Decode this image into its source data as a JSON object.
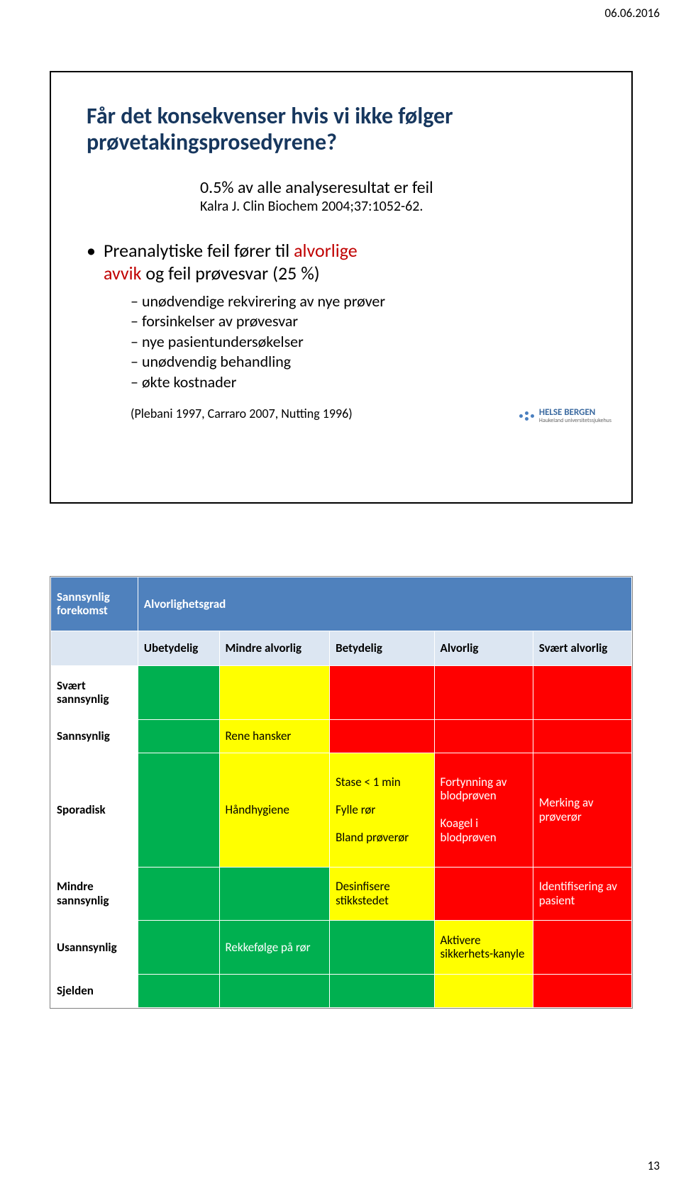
{
  "meta": {
    "date": "06.06.2016",
    "page_number": "13"
  },
  "slide1": {
    "title_l1": "Får det konsekvenser hvis vi ikke følger",
    "title_l2": "prøvetakingsprosedyrene?",
    "sub_main": "0.5% av alle analyseresultat er feil",
    "sub_cite": "Kalra J. Clin Biochem 2004;37:1052-62.",
    "bullet_pre": "Preanalytiske feil fører til ",
    "bullet_accent": "alvorlige",
    "bullet_line2_pre": "avvik",
    "bullet_line2_rest": " og feil prøvesvar (25 %)",
    "subitems": [
      "unødvendige rekvirering av nye prøver",
      "forsinkelser av prøvesvar",
      "nye pasientundersøkelser",
      "unødvendig behandling",
      "økte kostnader"
    ],
    "reference": "(Plebani 1997, Carraro 2007, Nutting 1996)",
    "logo_name": "HELSE BERGEN",
    "logo_sub": "Haukeland universitetssjukehus"
  },
  "slide2": {
    "colors": {
      "green": "#00b050",
      "yellow": "#ffff00",
      "red": "#ff0000",
      "row_label_bg": "#ffffff",
      "header_blue": "#4f81bd",
      "header_light": "#dce6f2"
    },
    "header": {
      "forekomst_l1": "Sannsynlig",
      "forekomst_l2": "forekomst",
      "grad": "Alvorlighetsgrad",
      "cols": [
        "Ubetydelig",
        "Mindre alvorlig",
        "Betydelig",
        "Alvorlig",
        "Svært alvorlig"
      ]
    },
    "rows": [
      {
        "label_l1": "Svært",
        "label_l2": "sannsynlig",
        "cells": [
          {
            "bg": "green",
            "text": ""
          },
          {
            "bg": "yellow",
            "text": ""
          },
          {
            "bg": "red",
            "text": ""
          },
          {
            "bg": "red",
            "text": ""
          },
          {
            "bg": "red",
            "text": ""
          }
        ]
      },
      {
        "label_l1": "Sannsynlig",
        "label_l2": "",
        "cells": [
          {
            "bg": "green",
            "text": ""
          },
          {
            "bg": "yellow",
            "text": "Rene hansker"
          },
          {
            "bg": "red",
            "text": ""
          },
          {
            "bg": "red",
            "text": ""
          },
          {
            "bg": "red",
            "text": ""
          }
        ]
      },
      {
        "label_l1": "Sporadisk",
        "label_l2": "",
        "cells": [
          {
            "bg": "green",
            "text": ""
          },
          {
            "bg": "yellow",
            "text": "Håndhygiene"
          },
          {
            "bg": "yellow",
            "text": "Stase < 1 min\n\nFylle rør\n\nBland prøverør"
          },
          {
            "bg": "red",
            "text": "Fortynning av blodprøven\n\nKoagel i blodprøven",
            "white": true
          },
          {
            "bg": "red",
            "text": "Merking av prøverør",
            "white": true
          }
        ]
      },
      {
        "label_l1": "Mindre",
        "label_l2": "sannsynlig",
        "cells": [
          {
            "bg": "green",
            "text": ""
          },
          {
            "bg": "green",
            "text": ""
          },
          {
            "bg": "yellow",
            "text": "Desinfisere stikkstedet"
          },
          {
            "bg": "red",
            "text": ""
          },
          {
            "bg": "red",
            "text": "Identifisering av pasient",
            "white": true
          }
        ]
      },
      {
        "label_l1": "Usannsynlig",
        "label_l2": "",
        "cells": [
          {
            "bg": "green",
            "text": ""
          },
          {
            "bg": "green",
            "text": "Rekkefølge på rør",
            "white": true
          },
          {
            "bg": "green",
            "text": ""
          },
          {
            "bg": "yellow",
            "text": "Aktivere sikkerhets-kanyle"
          },
          {
            "bg": "red",
            "text": ""
          }
        ]
      },
      {
        "label_l1": "Sjelden",
        "label_l2": "",
        "cells": [
          {
            "bg": "green",
            "text": ""
          },
          {
            "bg": "green",
            "text": ""
          },
          {
            "bg": "green",
            "text": ""
          },
          {
            "bg": "yellow",
            "text": ""
          },
          {
            "bg": "red",
            "text": ""
          }
        ]
      }
    ]
  }
}
